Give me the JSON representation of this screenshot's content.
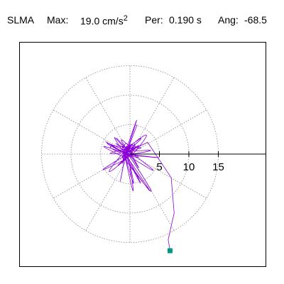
{
  "header": {
    "station": "SLMA",
    "max_label": "Max:",
    "max_value": "19.0",
    "max_unit": "cm/s",
    "max_exp": "2",
    "per_label": "Per:",
    "per_value": "0.190 s",
    "ang_label": "Ang:",
    "ang_value": "-68.5"
  },
  "chart_data": {
    "type": "polar-orbit",
    "r_ticks": [
      5,
      10,
      15
    ],
    "tick_labels": [
      "5",
      "10",
      "15"
    ],
    "angle_division_deg": 30,
    "trace_color": "#8B00D9",
    "marker_color": "#009980",
    "end_point": {
      "x": 6.8,
      "y": -16.4
    },
    "grid": true
  }
}
